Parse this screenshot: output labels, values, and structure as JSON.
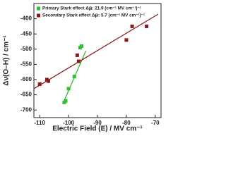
{
  "chart_data": {
    "type": "scatter",
    "xlabel": "Electric Field (E) / MV cm⁻¹",
    "ylabel": "Δν(O–H) / cm⁻¹",
    "xlim": [
      -112,
      -68
    ],
    "xticks": [
      -110,
      -100,
      -90,
      -80,
      -70
    ],
    "ylim": [
      -725,
      -350
    ],
    "yticks": [
      -700,
      -650,
      -600,
      -550,
      -500,
      -450,
      -400
    ],
    "legend": "top-left",
    "series": [
      {
        "name": "Primary Stark effect Δμ⃗: 21.9 (cm⁻¹ MV cm⁻¹)⁻¹",
        "color": "#2fbf2f",
        "x": [
          -101.5,
          -101,
          -100,
          -98,
          -96,
          -95.5
        ],
        "values": [
          -675,
          -670,
          -630,
          -590,
          -495,
          -490
        ]
      },
      {
        "name": "Secondary Stark effect Δμ⃗: 5.7 (cm⁻¹ MV cm⁻¹)⁻¹",
        "color": "#8b1a1a",
        "x": [
          -110,
          -107.5,
          -107,
          -97,
          -96.5,
          -80,
          -78,
          -73
        ],
        "values": [
          -615,
          -600,
          -605,
          -520,
          -540,
          -470,
          -425,
          -425
        ]
      }
    ],
    "fit_lines": [
      {
        "color": "#2fbf2f",
        "x": [
          -102,
          -94
        ],
        "values": [
          -680,
          -505
        ]
      },
      {
        "color": "#8b1a1a",
        "x": [
          -112,
          -69
        ],
        "values": [
          -630,
          -385
        ]
      }
    ]
  }
}
